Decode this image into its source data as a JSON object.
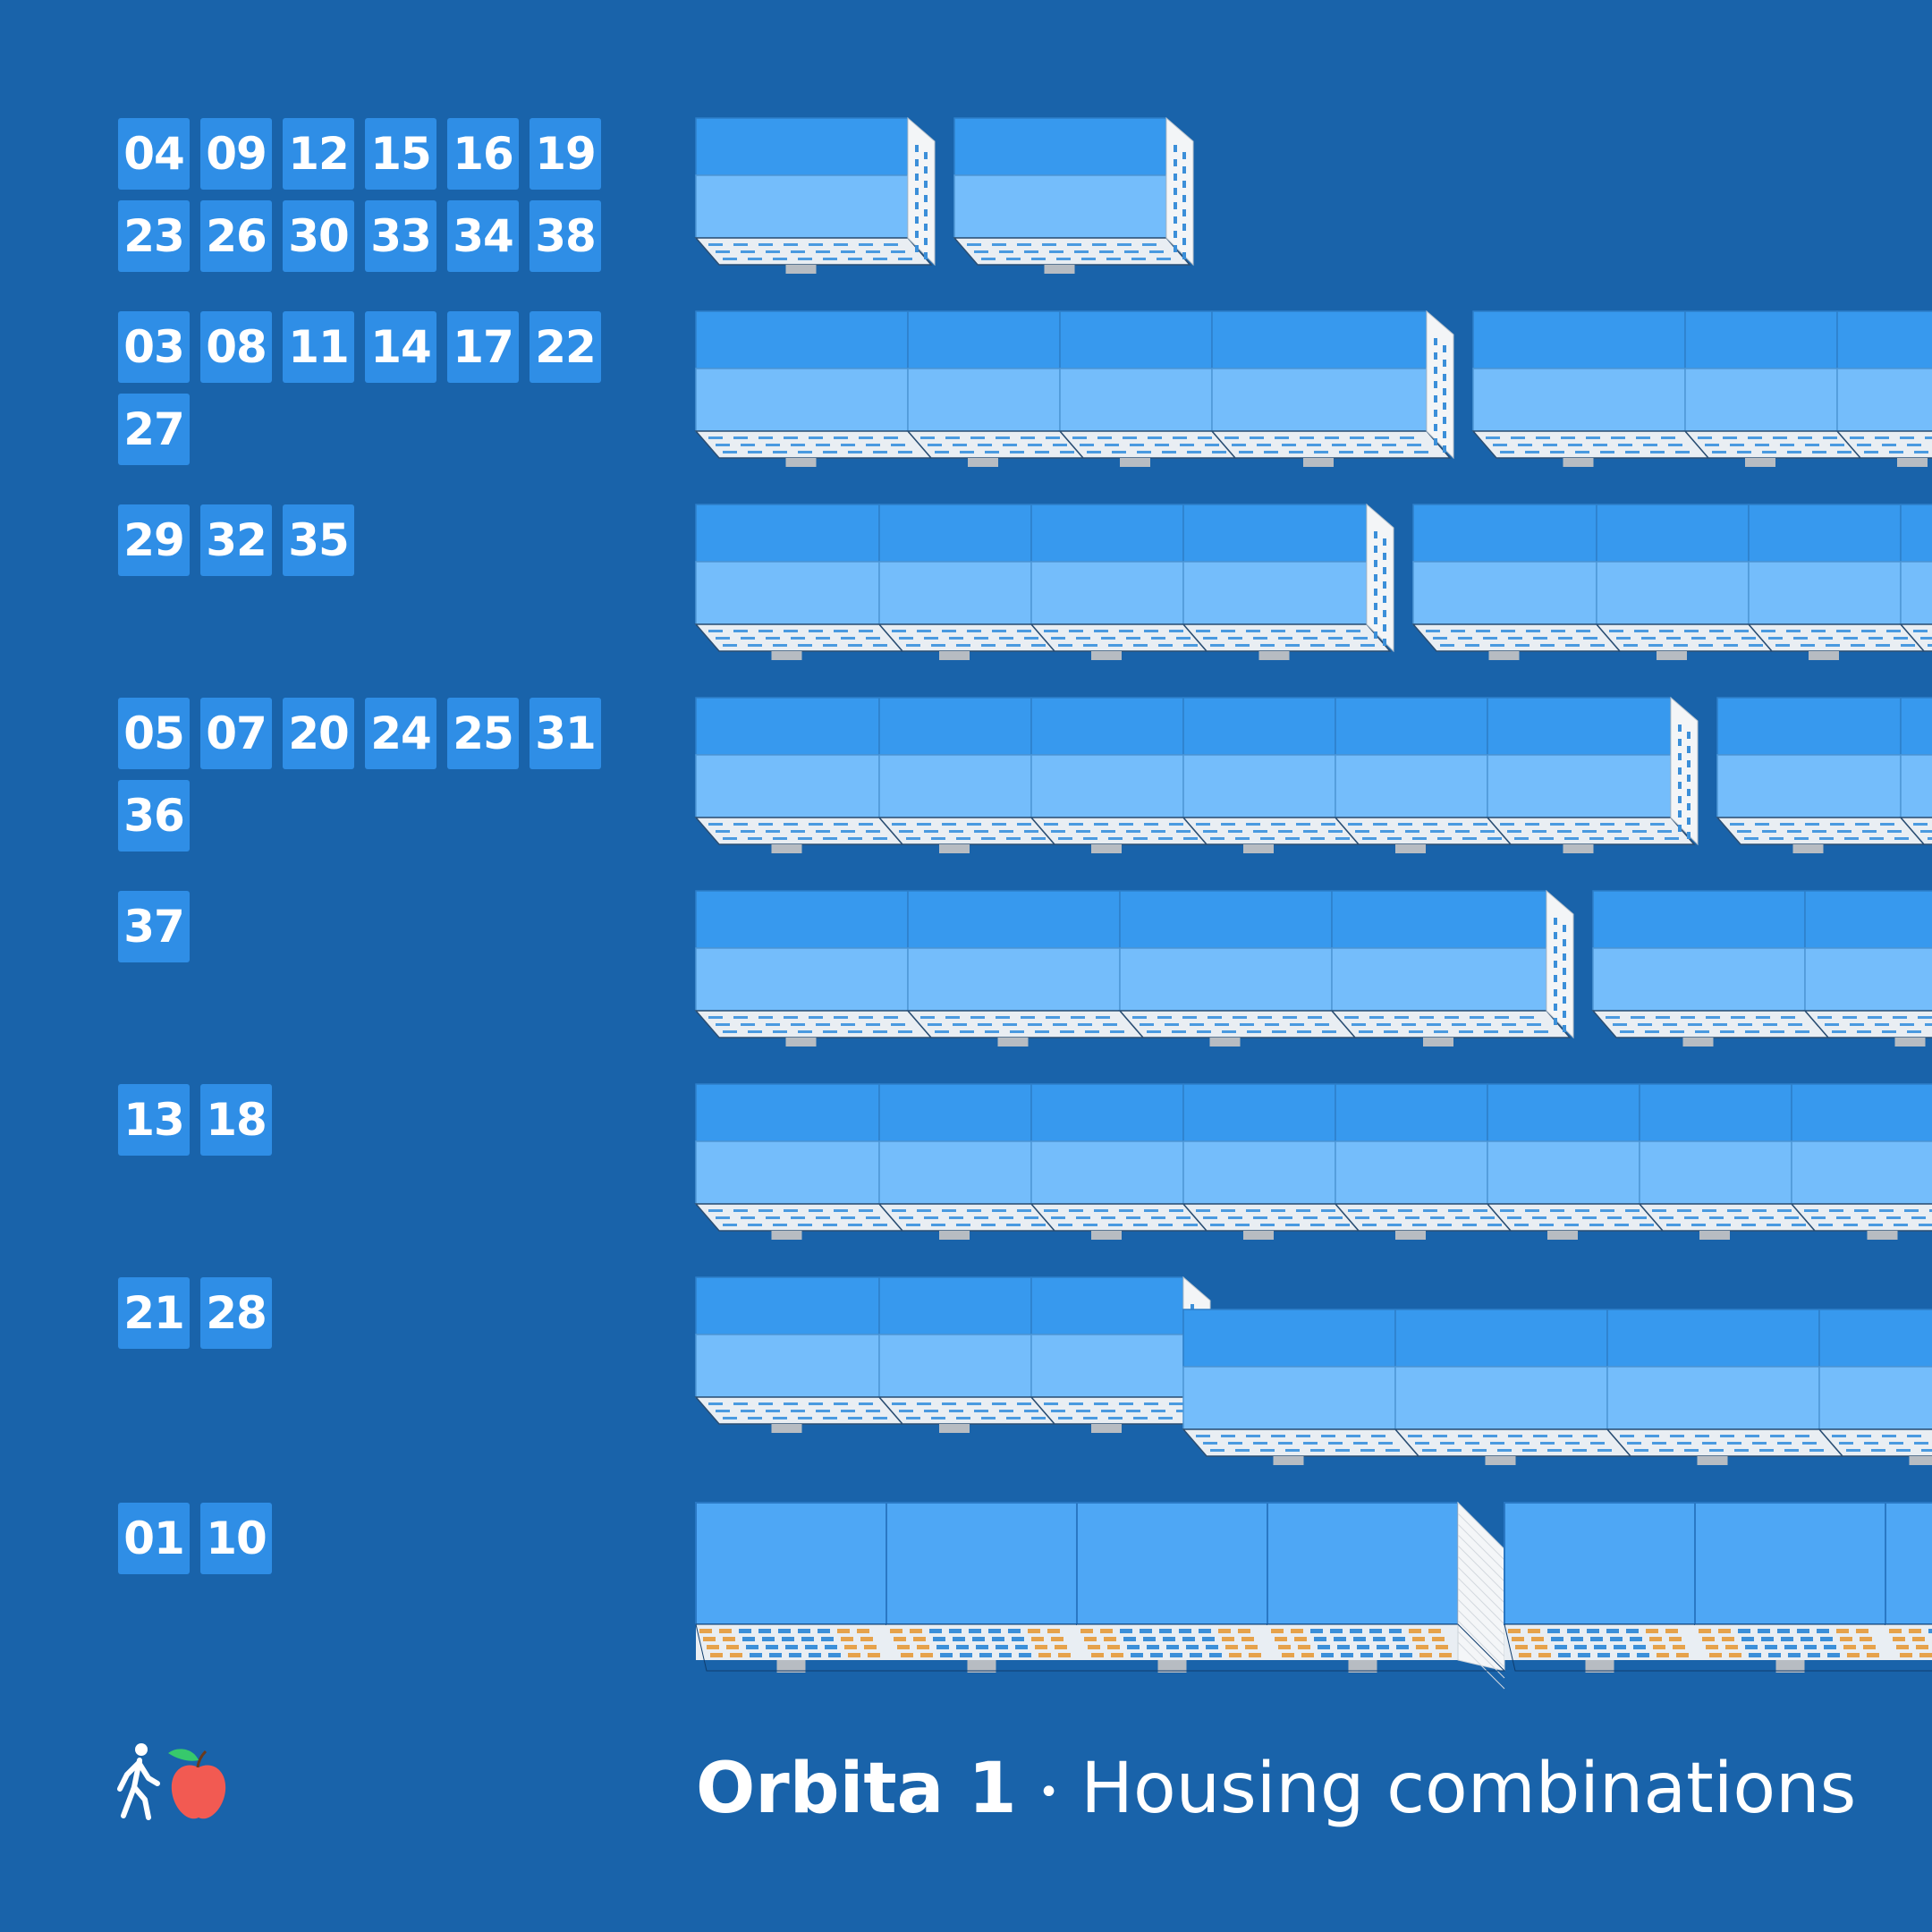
{
  "title": {
    "name": "Orbita 1",
    "separator": "•",
    "subtitle": "Housing combinations"
  },
  "colors": {
    "background": "#1963aa",
    "badge": "#2f8ee6",
    "roof": "#3799ee",
    "facade": "#74bdfb",
    "facade_tall": "#4ea7f5",
    "base": "#e9eef3",
    "window_accent": "#e6a24b"
  },
  "logo": {
    "icons": [
      "pedestrian-icon",
      "apple-icon"
    ]
  },
  "groups": [
    {
      "ids": [
        "04",
        "09",
        "12",
        "15",
        "16",
        "19",
        "23",
        "26",
        "30",
        "33",
        "34",
        "38"
      ],
      "buildings": [
        [
          2,
          237
        ],
        [
          2,
          237
        ]
      ]
    },
    {
      "ids": [
        "03",
        "08",
        "11",
        "14",
        "17",
        "22",
        "27"
      ],
      "buildings": [
        [
          4,
          237,
          170,
          170,
          240
        ],
        [
          4,
          237,
          170,
          170,
          240
        ]
      ]
    },
    {
      "ids": [
        "29",
        "32",
        "35"
      ],
      "buildings": [
        [
          4,
          205,
          170,
          170,
          205
        ],
        [
          4,
          205,
          170,
          170,
          205
        ]
      ]
    },
    {
      "ids": [
        "05",
        "07",
        "20",
        "24",
        "25",
        "31",
        "36"
      ],
      "buildings": [
        [
          6,
          205,
          170,
          170,
          170,
          170,
          205
        ],
        [
          6,
          205,
          170,
          170,
          170,
          170,
          205
        ]
      ]
    },
    {
      "ids": [
        "37"
      ],
      "buildings": [
        [
          4,
          237,
          237,
          237,
          240
        ],
        [
          4,
          237,
          237,
          237,
          240
        ]
      ]
    },
    {
      "ids": [
        "13",
        "18"
      ],
      "buildings": [
        [
          8,
          205,
          170,
          170,
          170,
          170,
          170,
          170,
          205
        ]
      ]
    },
    {
      "ids": [
        "21",
        "28"
      ],
      "buildings": [
        [
          3,
          205,
          170,
          170
        ],
        [
          4,
          237,
          237,
          237,
          237
        ]
      ]
    },
    {
      "ids": [
        "01",
        "10"
      ],
      "buildings": [
        [
          4,
          213,
          213,
          213,
          213
        ],
        [
          4,
          213,
          213,
          213,
          213
        ]
      ]
    }
  ]
}
